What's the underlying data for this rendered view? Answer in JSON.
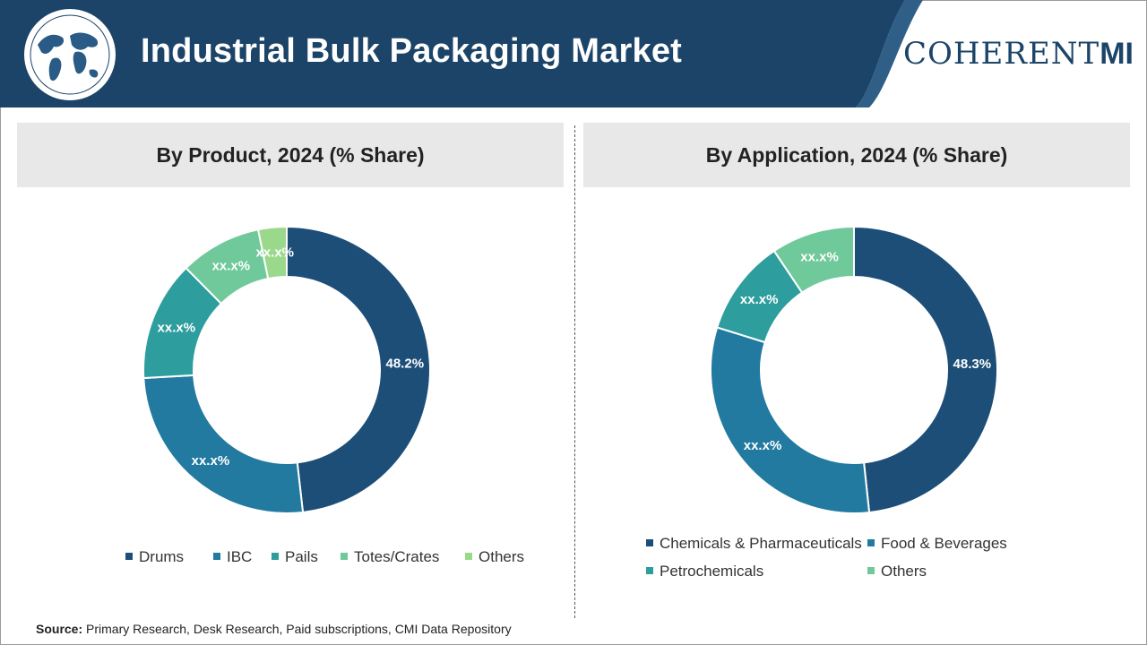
{
  "header": {
    "title": "Industrial Bulk Packaging Market",
    "logo_text": "COHERENT",
    "logo_suffix": "MI"
  },
  "source": {
    "label": "Source:",
    "text": "Primary Research, Desk Research, Paid subscriptions, CMI Data Repository"
  },
  "colors": {
    "header_bg": "#1b4468",
    "dark_navy": "#1c4e78",
    "teal_blue": "#227aa0",
    "teal": "#2e9d9d",
    "light_green": "#6fc99a",
    "pale_green": "#9ad98b"
  },
  "chart_data": [
    {
      "type": "pie",
      "donut": true,
      "title": "By Product, 2024 (% Share)",
      "categories": [
        "Drums",
        "IBC",
        "Pails",
        "Totes/Crates",
        "Others"
      ],
      "values": [
        48.2,
        25.9,
        13.5,
        9.2,
        3.2
      ],
      "labels": [
        "48.2%",
        "xx.x%",
        "xx.x%",
        "xx.x%",
        "xx.x%"
      ],
      "colors": [
        "#1c4e78",
        "#227aa0",
        "#2e9d9d",
        "#6fc99a",
        "#9ad98b"
      ],
      "legend_placement": "bottom"
    },
    {
      "type": "pie",
      "donut": true,
      "title": "By Application, 2024 (% Share)",
      "categories": [
        "Chemicals & Pharmaceuticals",
        "Food & Beverages",
        "Petrochemicals",
        "Others"
      ],
      "values": [
        48.3,
        31.5,
        10.8,
        9.4
      ],
      "labels": [
        "48.3%",
        "xx.x%",
        "xx.x%",
        "xx.x%"
      ],
      "colors": [
        "#1c4e78",
        "#227aa0",
        "#2e9d9d",
        "#6fc99a"
      ],
      "legend_placement": "bottom"
    }
  ]
}
